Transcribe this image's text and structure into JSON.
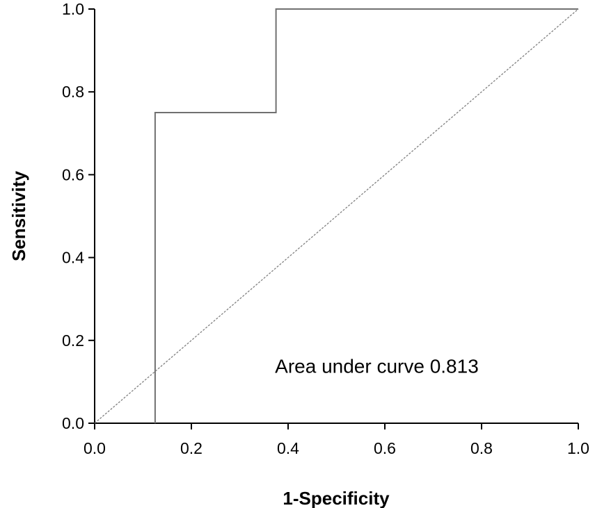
{
  "chart_data": {
    "type": "line",
    "title": "",
    "xlabel": "1-Specificity",
    "ylabel": "Sensitivity",
    "xlim": [
      0.0,
      1.0
    ],
    "ylim": [
      0.0,
      1.0
    ],
    "x_ticks": [
      "0.0",
      "0.2",
      "0.4",
      "0.6",
      "0.8",
      "1.0"
    ],
    "y_ticks": [
      "0.0",
      "0.2",
      "0.4",
      "0.6",
      "0.8",
      "1.0"
    ],
    "grid": false,
    "legend": "none",
    "series": [
      {
        "style": "solid",
        "color": "#707070",
        "points": [
          {
            "x": 0.125,
            "y": 0.0
          },
          {
            "x": 0.125,
            "y": 0.75
          },
          {
            "x": 0.375,
            "y": 0.75
          },
          {
            "x": 0.375,
            "y": 1.0
          },
          {
            "x": 1.0,
            "y": 1.0
          }
        ]
      },
      {
        "style": "dashed",
        "color": "#808080",
        "points": [
          {
            "x": 0.0,
            "y": 0.0
          },
          {
            "x": 1.0,
            "y": 1.0
          }
        ]
      }
    ],
    "annotations": [
      {
        "text": "Area under curve 0.813",
        "x": 0.37,
        "y": 0.13
      }
    ]
  }
}
